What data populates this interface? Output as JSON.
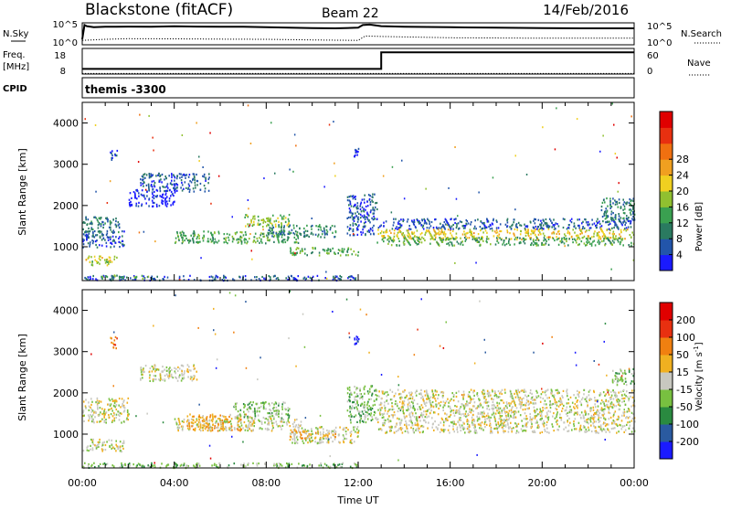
{
  "header": {
    "station": "Blackstone (fitACF)",
    "beam": "Beam 22",
    "date": "14/Feb/2016"
  },
  "chart_data": [
    {
      "type": "line",
      "name_left": "N.Sky",
      "name_right": "N.Search",
      "yticks_left": [
        "10^5",
        "10^0"
      ],
      "yticks_right": [
        "10^5",
        "10^0"
      ],
      "series": [
        {
          "style": "solid",
          "x_hours": [
            0,
            0.1,
            0.2,
            0.5,
            1,
            2,
            3,
            4,
            5,
            6,
            7,
            8,
            9,
            10,
            11,
            12,
            12.2,
            12.5,
            13,
            14,
            16,
            18,
            20,
            22,
            24
          ],
          "y_frac": [
            0.25,
            0.9,
            0.85,
            0.8,
            0.82,
            0.83,
            0.82,
            0.84,
            0.83,
            0.82,
            0.82,
            0.8,
            0.78,
            0.76,
            0.75,
            0.78,
            0.9,
            0.92,
            0.85,
            0.82,
            0.8,
            0.78,
            0.76,
            0.75,
            0.75
          ]
        },
        {
          "style": "dotted",
          "x_hours": [
            0,
            1,
            2,
            4,
            6,
            8,
            10,
            12,
            12.3,
            13,
            16,
            20,
            24
          ],
          "y_frac": [
            0.2,
            0.25,
            0.28,
            0.27,
            0.26,
            0.25,
            0.22,
            0.2,
            0.4,
            0.38,
            0.32,
            0.3,
            0.3
          ]
        }
      ]
    },
    {
      "type": "line",
      "name_left_top": "Freq.",
      "name_left_unit": "[MHz]",
      "name_left_bottom": "CPID",
      "name_right": "Nave",
      "yticks_left": [
        "18",
        "8"
      ],
      "yticks_right": [
        "60",
        "0"
      ],
      "series": [
        {
          "style": "solid",
          "x_hours": [
            0,
            13,
            13,
            24
          ],
          "y_frac": [
            0.2,
            0.2,
            0.85,
            0.85
          ]
        },
        {
          "style": "dotted",
          "x_hours": [
            0,
            24
          ],
          "y_frac": [
            0.02,
            0.02
          ]
        }
      ],
      "cpid_label": "themis -3300"
    },
    {
      "type": "heatmap",
      "variable": "power",
      "ylabel": "Slant Range [km]",
      "ylim": [
        180,
        4500
      ],
      "yticks": [
        1000,
        2000,
        3000,
        4000
      ],
      "colorbar": {
        "label": "Power [dB]",
        "ticks": [
          4,
          8,
          12,
          16,
          20,
          24,
          28
        ],
        "colors": [
          "#1a1aff",
          "#2255aa",
          "#2a7a60",
          "#3aa050",
          "#90c030",
          "#f0d020",
          "#f0a020",
          "#f07010",
          "#e83010",
          "#e00000"
        ]
      },
      "regions": [
        {
          "x": [
            0.0,
            1.6
          ],
          "y": [
            1350,
            1750
          ],
          "level": 2
        },
        {
          "x": [
            0.0,
            1.8
          ],
          "y": [
            1000,
            1400
          ],
          "level": 1
        },
        {
          "x": [
            0.0,
            1.5
          ],
          "y": [
            650,
            800
          ],
          "level": 5
        },
        {
          "x": [
            0.3,
            1.2
          ],
          "y": [
            550,
            680
          ],
          "level": 4
        },
        {
          "x": [
            0.0,
            12.0
          ],
          "y": [
            200,
            320
          ],
          "level": 1
        },
        {
          "x": [
            0.8,
            3.0
          ],
          "y": [
            250,
            330
          ],
          "level": 3
        },
        {
          "x": [
            2.5,
            5.5
          ],
          "y": [
            2350,
            2800
          ],
          "level": 1
        },
        {
          "x": [
            2.0,
            4.0
          ],
          "y": [
            2000,
            2400
          ],
          "level": 0
        },
        {
          "x": [
            4.0,
            9.5
          ],
          "y": [
            1100,
            1400
          ],
          "level": 3
        },
        {
          "x": [
            7.0,
            9.0
          ],
          "y": [
            1500,
            1800
          ],
          "level": 4
        },
        {
          "x": [
            8.0,
            11.0
          ],
          "y": [
            1250,
            1550
          ],
          "level": 2
        },
        {
          "x": [
            9.0,
            12.0
          ],
          "y": [
            800,
            1000
          ],
          "level": 3
        },
        {
          "x": [
            11.5,
            12.8
          ],
          "y": [
            1300,
            2300
          ],
          "level": 1
        },
        {
          "x": [
            12.8,
            24.0
          ],
          "y": [
            1200,
            1450
          ],
          "level": 5
        },
        {
          "x": [
            12.8,
            24.0
          ],
          "y": [
            1050,
            1250
          ],
          "level": 3
        },
        {
          "x": [
            12.8,
            24.0
          ],
          "y": [
            1450,
            1700
          ],
          "level": 1
        },
        {
          "x": [
            22.5,
            24.0
          ],
          "y": [
            1600,
            2200
          ],
          "level": 2
        },
        {
          "x": [
            11.8,
            12.0
          ],
          "y": [
            3200,
            3400
          ],
          "level": 0
        },
        {
          "x": [
            1.2,
            1.5
          ],
          "y": [
            3100,
            3400
          ],
          "level": 1
        }
      ]
    },
    {
      "type": "heatmap",
      "variable": "velocity",
      "ylabel": "Slant Range [km]",
      "xlabel": "Time UT",
      "xlim": [
        0,
        24
      ],
      "xticks": [
        "00:00",
        "04:00",
        "08:00",
        "12:00",
        "16:00",
        "20:00",
        "00:00"
      ],
      "ylim": [
        180,
        4500
      ],
      "yticks": [
        1000,
        2000,
        3000,
        4000
      ],
      "colorbar": {
        "label": "Velocity [m s-1]",
        "label_main": "Velocity",
        "label_unit": "[m s",
        "label_sup": "-1",
        "label_close": "]",
        "ticks": [
          200,
          100,
          50,
          15,
          -15,
          -50,
          -100,
          -200
        ],
        "colors": [
          "#1a1aff",
          "#2a5aa0",
          "#2a8a40",
          "#78c040",
          "#c8c8c0",
          "#f0b020",
          "#f08010",
          "#e83010",
          "#e00000"
        ]
      },
      "regions": [
        {
          "x": [
            0.0,
            2.0
          ],
          "y": [
            1300,
            1900
          ],
          "level": 4
        },
        {
          "x": [
            0.0,
            1.8
          ],
          "y": [
            600,
            900
          ],
          "level": 4
        },
        {
          "x": [
            0.0,
            12.0
          ],
          "y": [
            200,
            320
          ],
          "level": 3
        },
        {
          "x": [
            2.5,
            5.0
          ],
          "y": [
            2300,
            2700
          ],
          "level": 4
        },
        {
          "x": [
            4.0,
            9.5
          ],
          "y": [
            1100,
            1400
          ],
          "level": 4
        },
        {
          "x": [
            4.5,
            7.5
          ],
          "y": [
            1100,
            1500
          ],
          "level": 5
        },
        {
          "x": [
            6.5,
            9.0
          ],
          "y": [
            1400,
            1800
          ],
          "level": 3
        },
        {
          "x": [
            9.0,
            12.0
          ],
          "y": [
            800,
            1200
          ],
          "level": 4
        },
        {
          "x": [
            9.0,
            11.0
          ],
          "y": [
            900,
            1100
          ],
          "level": 5
        },
        {
          "x": [
            11.5,
            12.8
          ],
          "y": [
            1300,
            2200
          ],
          "level": 3
        },
        {
          "x": [
            12.8,
            24.0
          ],
          "y": [
            1050,
            1700
          ],
          "level": 4
        },
        {
          "x": [
            12.8,
            24.0
          ],
          "y": [
            1700,
            2100
          ],
          "level": 4
        },
        {
          "x": [
            23.0,
            24.0
          ],
          "y": [
            2200,
            2600
          ],
          "level": 3
        },
        {
          "x": [
            1.2,
            1.5
          ],
          "y": [
            3100,
            3400
          ],
          "level": 6
        },
        {
          "x": [
            11.8,
            12.0
          ],
          "y": [
            3200,
            3400
          ],
          "level": 0
        }
      ]
    }
  ]
}
